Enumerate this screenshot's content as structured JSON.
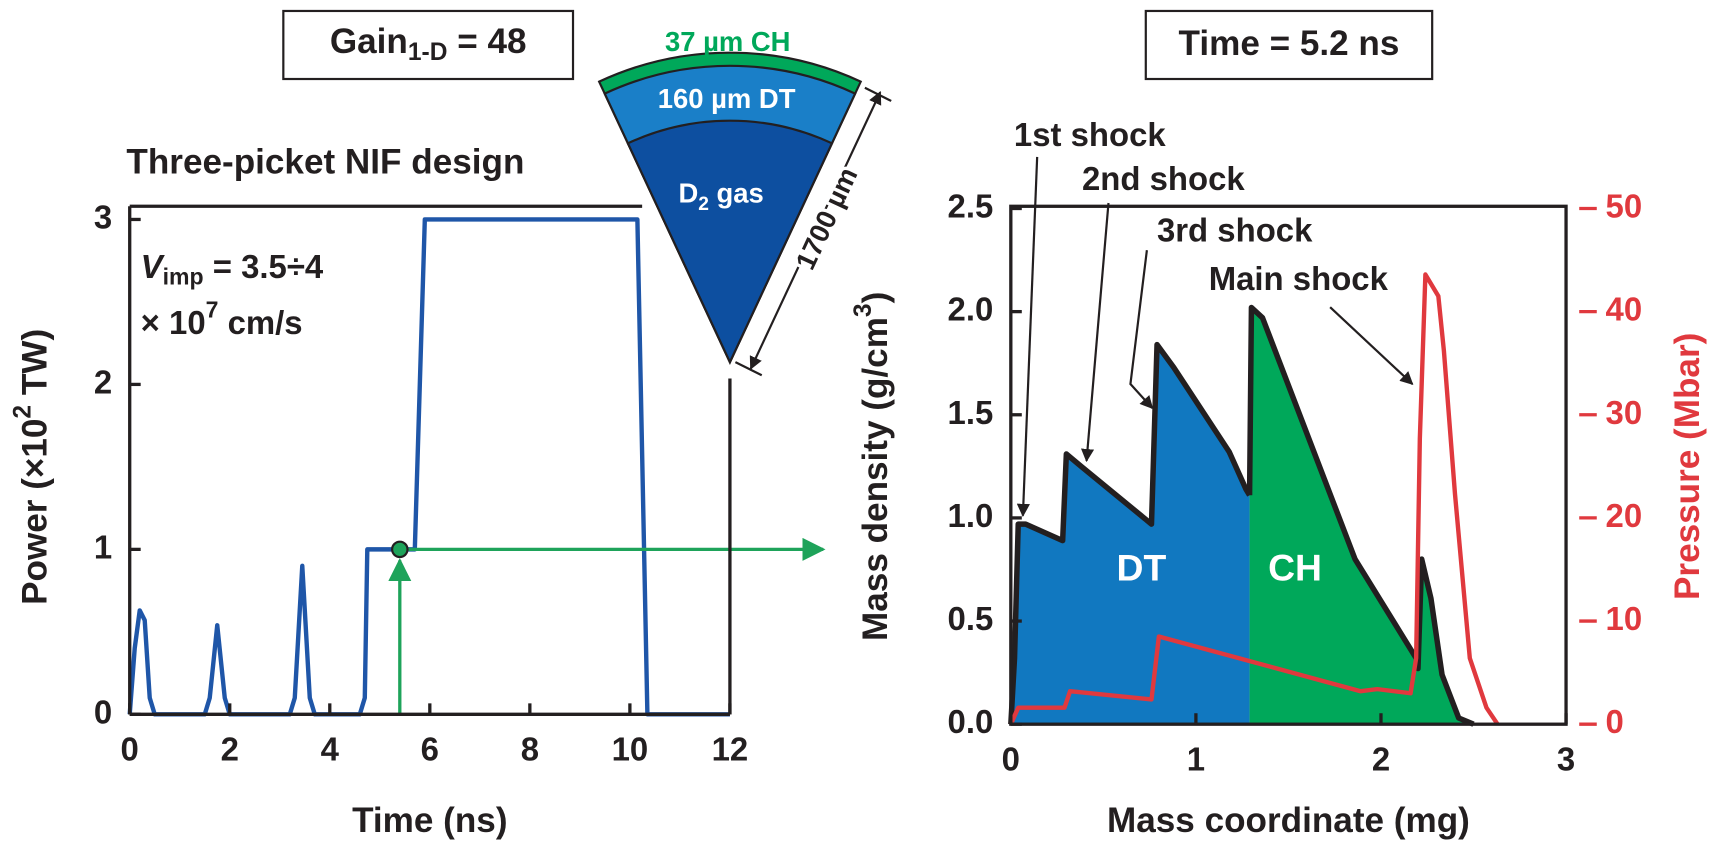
{
  "chart_data": [
    {
      "type": "line",
      "title": "Three-picket NIF design",
      "gain_label": [
        "Gain",
        "1-D",
        " = 48"
      ],
      "velocity_label": [
        "V",
        "imp",
        " = 3.5÷4",
        "× 10",
        "7",
        " cm/s"
      ],
      "x_label": "Time (ns)",
      "y_label": [
        "Power (×10",
        "2",
        " TW)"
      ],
      "x": [
        0,
        0.1,
        0.2,
        0.3,
        0.4,
        0.5,
        1.5,
        1.6,
        1.75,
        1.9,
        2.0,
        3.2,
        3.3,
        3.45,
        3.6,
        3.7,
        4.6,
        4.7,
        4.75,
        5.7,
        5.8,
        5.9,
        10.15,
        10.35,
        12
      ],
      "series": [
        {
          "color": "#1f56a8",
          "values": [
            0,
            0.4,
            0.63,
            0.57,
            0.1,
            0,
            0,
            0.1,
            0.54,
            0.1,
            0,
            0,
            0.1,
            0.9,
            0.1,
            0,
            0,
            0.1,
            1,
            1,
            2,
            3,
            3,
            0,
            0
          ]
        }
      ],
      "xlim": [
        0,
        12
      ],
      "xticks": [
        0,
        2,
        4,
        6,
        8,
        10,
        12
      ],
      "ylim": [
        0,
        3
      ],
      "yticks": [
        0,
        1,
        2,
        3
      ],
      "highlight_point": {
        "x": 5.4,
        "y": 1,
        "color": "#1ea35a"
      }
    },
    {
      "type": "area",
      "title": "Time = 5.2 ns",
      "x_label": "Mass coordinate (mg)",
      "y_label": [
        "Mass density (g/cm",
        "3",
        ")"
      ],
      "y2_label": "Pressure (Mbar)",
      "annotations": [
        "1st shock",
        "2nd shock",
        "3rd shock",
        "Main shock"
      ],
      "outline_color": "#231f20",
      "series": [
        {
          "name": "DT",
          "color": "#1178c0",
          "x": [
            0,
            0.02,
            0.04,
            0.08,
            0.28,
            0.3,
            0.38,
            0.76,
            0.79,
            0.88,
            1.18,
            1.27,
            1.29
          ],
          "values": [
            0,
            0.32,
            0.97,
            0.97,
            0.89,
            1.31,
            1.25,
            0.97,
            1.84,
            1.73,
            1.32,
            1.14,
            1.11
          ]
        },
        {
          "name": "CH",
          "color": "#00a85a",
          "x": [
            1.29,
            1.3,
            1.36,
            1.86,
            2.19,
            2.2,
            2.22,
            2.27,
            2.33,
            2.42,
            2.5
          ],
          "values": [
            1.11,
            2.02,
            1.97,
            0.8,
            0.32,
            0.27,
            0.8,
            0.61,
            0.24,
            0.03,
            0
          ]
        },
        {
          "type": "line",
          "axis": "y2",
          "color": "#e0393e",
          "x": [
            0,
            0.04,
            0.29,
            0.32,
            0.76,
            0.8,
            1.89,
            1.98,
            2.16,
            2.19,
            2.21,
            2.24,
            2.31,
            2.34,
            2.4,
            2.48,
            2.57,
            2.63
          ],
          "values": [
            0,
            1.6,
            1.6,
            3.2,
            2.4,
            8.5,
            3.2,
            3.4,
            3,
            6.4,
            27.7,
            43.6,
            41.5,
            36.2,
            22.3,
            6.4,
            1.6,
            0
          ]
        }
      ],
      "xlim": [
        0,
        3
      ],
      "xticks": [
        0,
        1,
        2,
        3
      ],
      "ylim": [
        0,
        2.5
      ],
      "yticks": [
        {
          "value": 0,
          "label": "0.0"
        },
        0.5,
        {
          "value": 1,
          "label": "1.0"
        },
        1.5,
        {
          "value": 2,
          "label": "2.0"
        },
        2.5
      ],
      "y2lim": [
        0,
        50
      ],
      "y2ticks": [
        0,
        10,
        20,
        30,
        40,
        50
      ],
      "y2_color": "#e0393e"
    }
  ],
  "diagram": {
    "outer_layer": "37 µm CH",
    "middle_layer": "160 µm DT",
    "core": [
      "D",
      "2",
      " gas"
    ],
    "radius": "1700 µm"
  }
}
